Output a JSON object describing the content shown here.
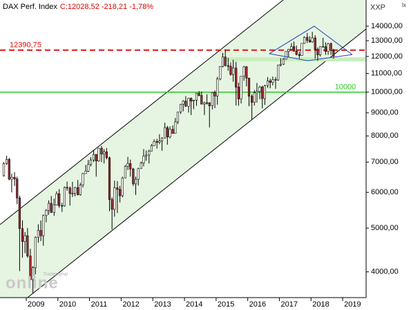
{
  "chart_data": {
    "type": "candlestick",
    "title": "DAX Perf. Index",
    "subtitle": "C:12028,52 -218,21 -1,78%",
    "corner_label": "XXP",
    "corner_mark": "lx",
    "watermark": [
      "Tradesignal",
      "online"
    ],
    "log_scale": true,
    "xlim": [
      2008.17,
      2019.74
    ],
    "xticks": [
      2009,
      2010,
      2011,
      2012,
      2013,
      2014,
      2015,
      2016,
      2017,
      2018,
      2019
    ],
    "ylim": [
      3508,
      16000
    ],
    "yticks": [
      {
        "value": 4000,
        "label": "4000,00"
      },
      {
        "value": 5000,
        "label": "5000,00"
      },
      {
        "value": 6000,
        "label": "6000,00"
      },
      {
        "value": 7000,
        "label": "7000,00"
      },
      {
        "value": 8000,
        "label": "8000,00"
      },
      {
        "value": 9000,
        "label": "9000,00"
      },
      {
        "value": 10000,
        "label": "10000,00"
      },
      {
        "value": 11000,
        "label": "11000,00"
      },
      {
        "value": 12000,
        "label": "12000,00"
      },
      {
        "value": 13000,
        "label": "13000,00"
      },
      {
        "value": 14000,
        "label": "14000,00"
      }
    ],
    "up_color": "#ffffff",
    "down_color": "#a52a2a",
    "channel": {
      "color": "#000000",
      "fill": "#e6f5e1",
      "upper": {
        "x": [
          2008.17,
          2017.12
        ],
        "y": [
          5090,
          16000
        ]
      },
      "lower": {
        "x": [
          2009.04,
          2019.74
        ],
        "y": [
          3508,
          13800
        ]
      }
    },
    "zone": {
      "from": 2015.3,
      "y": [
        11700,
        11950
      ],
      "color": "#c8efbe"
    },
    "triangle": {
      "color": "#1f3fbf",
      "lines": [
        {
          "x": [
            2016.68,
            2018.1,
            2019.3
          ],
          "y": [
            12170,
            14000,
            12110
          ]
        },
        {
          "x": [
            2016.68,
            2017.89,
            2019.3
          ],
          "y": [
            12170,
            11740,
            12110
          ]
        }
      ]
    },
    "hlines": [
      {
        "value": 12390.75,
        "label": "12390,75",
        "color": "#e01010",
        "dashed": true
      },
      {
        "value": 10000,
        "color": "#22cc22",
        "dashed": false
      }
    ],
    "candles": {
      "x": [
        2008.29,
        2008.38,
        2008.46,
        2008.54,
        2008.63,
        2008.71,
        2008.79,
        2008.88,
        2008.96,
        2009.04,
        2009.13,
        2009.21,
        2009.29,
        2009.38,
        2009.46,
        2009.54,
        2009.63,
        2009.71,
        2009.79,
        2009.88,
        2009.96,
        2010.04,
        2010.13,
        2010.21,
        2010.29,
        2010.38,
        2010.46,
        2010.54,
        2010.63,
        2010.71,
        2010.79,
        2010.88,
        2010.96,
        2011.04,
        2011.13,
        2011.21,
        2011.29,
        2011.38,
        2011.46,
        2011.54,
        2011.63,
        2011.71,
        2011.79,
        2011.88,
        2011.96,
        2012.04,
        2012.13,
        2012.21,
        2012.29,
        2012.38,
        2012.46,
        2012.54,
        2012.63,
        2012.71,
        2012.79,
        2012.88,
        2012.96,
        2013.04,
        2013.13,
        2013.21,
        2013.29,
        2013.38,
        2013.46,
        2013.54,
        2013.63,
        2013.71,
        2013.79,
        2013.88,
        2013.96,
        2014.04,
        2014.13,
        2014.21,
        2014.29,
        2014.38,
        2014.46,
        2014.54,
        2014.63,
        2014.71,
        2014.79,
        2014.88,
        2014.96,
        2015.04,
        2015.13,
        2015.21,
        2015.29,
        2015.38,
        2015.46,
        2015.54,
        2015.63,
        2015.71,
        2015.79,
        2015.88,
        2015.96,
        2016.04,
        2016.13,
        2016.21,
        2016.29,
        2016.38,
        2016.46,
        2016.54,
        2016.63,
        2016.71,
        2016.79,
        2016.88,
        2016.96,
        2017.04,
        2017.13,
        2017.21,
        2017.29,
        2017.38,
        2017.46,
        2017.54,
        2017.63,
        2017.71,
        2017.79,
        2017.88,
        2017.96,
        2018.04,
        2018.13,
        2018.21,
        2018.29,
        2018.38,
        2018.46,
        2018.54,
        2018.63,
        2018.71
      ],
      "open": [
        6534,
        6949,
        7097,
        6418,
        6479,
        6422,
        5831,
        4988,
        4669,
        4810,
        4338,
        3844,
        4085,
        4770,
        4941,
        4809,
        5332,
        5465,
        5675,
        5415,
        5625,
        5957,
        5608,
        5598,
        6154,
        6136,
        5964,
        5966,
        6148,
        5925,
        6229,
        6601,
        6688,
        6914,
        7077,
        7273,
        7041,
        7514,
        7294,
        7376,
        7159,
        5785,
        5502,
        6141,
        6089,
        5898,
        6458,
        6856,
        6947,
        6761,
        6264,
        6416,
        6772,
        6970,
        7216,
        7260,
        7405,
        7612,
        7776,
        7741,
        7795,
        7914,
        8348,
        7959,
        8276,
        8104,
        8594,
        9033,
        9405,
        9552,
        9306,
        9692,
        9556,
        9603,
        9943,
        9833,
        9407,
        9470,
        9474,
        9327,
        9981,
        9806,
        10694,
        11402,
        11966,
        11454,
        11414,
        10945,
        11309,
        10259,
        9660,
        10850,
        11382,
        10743,
        9798,
        9495,
        9966,
        10039,
        10263,
        9680,
        10337,
        10593,
        10511,
        10665,
        10640,
        11481,
        11535,
        11834,
        12313,
        12438,
        12615,
        12325,
        12118,
        12056,
        12829,
        13230,
        13024,
        12918,
        13189,
        12436,
        12097,
        12612,
        12605,
        12306,
        12806,
        12364
      ],
      "high": [
        7000,
        7230,
        7150,
        6600,
        6650,
        6500,
        5900,
        5200,
        4900,
        5000,
        4500,
        4120,
        4790,
        5100,
        5200,
        5360,
        5510,
        5760,
        5890,
        5810,
        6030,
        6100,
        5690,
        6180,
        6340,
        6180,
        6330,
        6170,
        6390,
        6300,
        6630,
        6900,
        7080,
        7180,
        7440,
        7300,
        7530,
        7600,
        7480,
        7520,
        7200,
        5850,
        6370,
        6350,
        6200,
        6500,
        6900,
        7190,
        7090,
        6800,
        6500,
        6800,
        7020,
        7480,
        7430,
        7460,
        7680,
        7860,
        7880,
        8070,
        7950,
        8560,
        8420,
        8400,
        8440,
        8770,
        9050,
        9420,
        9600,
        9800,
        9710,
        9730,
        9620,
        9960,
        10050,
        10030,
        9530,
        9890,
        9500,
        10000,
        10090,
        10810,
        11420,
        12220,
        12391,
        11920,
        11640,
        11800,
        11670,
        10500,
        10850,
        11430,
        11430,
        10760,
        9890,
        10100,
        10480,
        10330,
        10340,
        10390,
        10800,
        10720,
        10830,
        10800,
        11490,
        11890,
        11900,
        12320,
        12460,
        12840,
        12950,
        12680,
        12290,
        12840,
        13290,
        13526,
        13300,
        13597,
        13370,
        12560,
        12620,
        13200,
        12890,
        12860,
        12890,
        12470
      ],
      "low": [
        6500,
        6900,
        6380,
        6000,
        6200,
        5650,
        4015,
        4300,
        4400,
        4300,
        3830,
        3588,
        3950,
        4640,
        4680,
        4570,
        5150,
        5350,
        5400,
        5320,
        5610,
        5550,
        5430,
        5580,
        6050,
        5610,
        5860,
        5880,
        5910,
        5900,
        6150,
        6600,
        6650,
        6850,
        7000,
        6500,
        7010,
        7000,
        6950,
        7100,
        5450,
        4966,
        5300,
        5400,
        5700,
        5850,
        6450,
        6720,
        6500,
        6200,
        5920,
        6210,
        6770,
        6850,
        7050,
        6950,
        7400,
        7600,
        7500,
        7670,
        7420,
        7900,
        7650,
        7900,
        8100,
        8090,
        8500,
        8950,
        9070,
        9280,
        9010,
        8900,
        9170,
        9330,
        9790,
        9400,
        8900,
        9390,
        8355,
        9150,
        9220,
        9380,
        10620,
        11350,
        11400,
        11150,
        10880,
        10550,
        9340,
        9330,
        9440,
        10600,
        10300,
        9310,
        8700,
        9340,
        9480,
        9640,
        9210,
        9370,
        10220,
        10200,
        10350,
        10170,
        10600,
        11400,
        11490,
        11800,
        11930,
        12400,
        12320,
        12070,
        11870,
        12040,
        12800,
        12850,
        12870,
        12870,
        11870,
        11730,
        12000,
        12600,
        12100,
        12100,
        12100,
        11860
      ],
      "close": [
        6949,
        7097,
        6418,
        6479,
        6422,
        5831,
        4988,
        4669,
        4810,
        4338,
        3844,
        4085,
        4770,
        4941,
        4809,
        5332,
        5465,
        5675,
        5415,
        5625,
        5957,
        5608,
        5598,
        6154,
        6136,
        5964,
        5966,
        6148,
        5925,
        6229,
        6601,
        6688,
        6914,
        7077,
        7273,
        7041,
        7514,
        7294,
        7376,
        7159,
        5785,
        5502,
        6141,
        6089,
        5898,
        6458,
        6856,
        6947,
        6761,
        6264,
        6416,
        6772,
        6970,
        7216,
        7260,
        7405,
        7612,
        7776,
        7741,
        7795,
        7914,
        8348,
        7959,
        8276,
        8104,
        8594,
        9033,
        9405,
        9552,
        9306,
        9692,
        9556,
        9603,
        9943,
        9833,
        9407,
        9470,
        9474,
        9327,
        9981,
        9806,
        10694,
        11402,
        11966,
        11454,
        11414,
        10945,
        11309,
        10259,
        9660,
        10850,
        11382,
        10743,
        9798,
        9495,
        9966,
        10039,
        10263,
        9680,
        10337,
        10593,
        10511,
        10665,
        10640,
        11481,
        11535,
        11834,
        12313,
        12438,
        12615,
        12325,
        12118,
        12056,
        12829,
        13230,
        13024,
        12918,
        13189,
        12436,
        12097,
        12612,
        12605,
        12306,
        12806,
        12364,
        12028
      ]
    }
  }
}
